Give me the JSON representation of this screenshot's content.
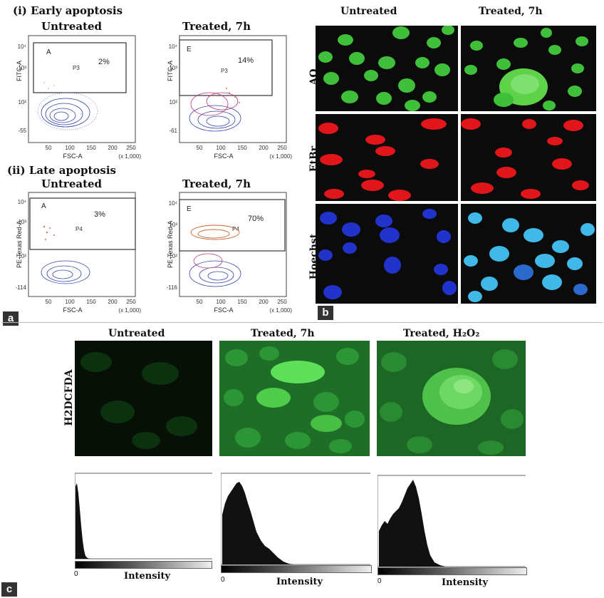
{
  "panel_a": {
    "letter": "a",
    "section_i": "(i) Early apoptosis",
    "section_ii": "(ii) Late apoptosis",
    "untreated": "Untreated",
    "treated": "Treated, 7h",
    "plots": [
      {
        "id": "early-untreated",
        "gate": "A",
        "population": "P3",
        "percent": "2%",
        "ylabel": "FITC-A",
        "xlabel": "FSC-A",
        "scale": "(x 1,000)",
        "yticks": [
          "10⁴",
          "10³",
          "10²",
          "-55"
        ],
        "xticks": [
          "50",
          "100",
          "150",
          "200",
          "250"
        ]
      },
      {
        "id": "early-treated",
        "gate": "E",
        "population": "P3",
        "percent": "14%",
        "ylabel": "FITC-A",
        "xlabel": "FSC-A",
        "scale": "(x 1,000)",
        "yticks": [
          "10⁴",
          "10³",
          "10²",
          "-61"
        ],
        "xticks": [
          "50",
          "100",
          "150",
          "200",
          "250"
        ]
      },
      {
        "id": "late-untreated",
        "gate": "A",
        "population": "P4",
        "percent": "3%",
        "ylabel": "PE-Texas Red-A",
        "xlabel": "FSC-A",
        "scale": "(x 1,000)",
        "yticks": [
          "10⁴",
          "10³",
          "10²",
          "-114"
        ],
        "xticks": [
          "50",
          "100",
          "150",
          "200",
          "250"
        ]
      },
      {
        "id": "late-treated",
        "gate": "E",
        "population": "P4",
        "percent": "70%",
        "ylabel": "PE-Texas Red-A",
        "xlabel": "FSC-A",
        "scale": "(x 1,000)",
        "yticks": [
          "10⁴",
          "10³",
          "10²",
          "-116"
        ],
        "xticks": [
          "50",
          "100",
          "150",
          "200",
          "250"
        ]
      }
    ]
  },
  "panel_b": {
    "letter": "b",
    "columns": [
      "Untreated",
      "Treated, 7h"
    ],
    "rows": [
      "AO",
      "EtBr",
      "Hoechst"
    ],
    "colors": {
      "AO": "#3fbf3a",
      "EtBr": "#e0161a",
      "Hoechst": "#2233cc",
      "Hoechst_treated": "#40b8e8"
    }
  },
  "panel_c": {
    "letter": "c",
    "row_label": "H2DCFDA",
    "columns": [
      "Untreated",
      "Treated, 7h",
      "Treated, H₂O₂"
    ],
    "histograms": [
      {
        "x_label": "Intensity",
        "x_start": "0"
      },
      {
        "x_label": "Intensity",
        "x_start": "0"
      },
      {
        "x_label": "Intensity",
        "x_start": "0"
      }
    ],
    "green": "#2fa83a"
  }
}
